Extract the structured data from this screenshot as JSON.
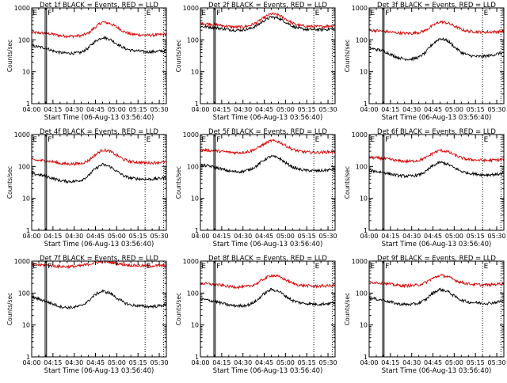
{
  "colors": {
    "events": "#000000",
    "lld": "#dd0000",
    "axis": "#000000",
    "background": "#ffffff"
  },
  "panel_common": {
    "ylabel": "Counts/sec",
    "xlabel": "Start Time (06-Aug-13 03:56:40)",
    "x_tick_labels": [
      "04:00",
      "04:15",
      "04:30",
      "04:45",
      "05:00",
      "05:15",
      "05:30"
    ],
    "y_tick_labels": [
      "1",
      "10",
      "100",
      "1000"
    ],
    "marker_labels": [
      "E",
      "F",
      "E"
    ]
  },
  "chart_data": [
    {
      "type": "line",
      "title": "Det 1f BLACK = Events, RED = LLD",
      "xlabel": "Start Time (06-Aug-13 03:56:40)",
      "ylabel": "Counts/sec",
      "x_unit": "minutes since 04:00",
      "xlim": [
        0,
        95
      ],
      "ylim": [
        1,
        1000
      ],
      "yscale": "log",
      "markers": {
        "solid": [
          9.5,
          10.5
        ],
        "dotted": [
          80,
          93
        ],
        "labels": [
          "E",
          "F",
          "E"
        ]
      },
      "series": [
        {
          "name": "LLD",
          "color": "red",
          "x": [
            0,
            5,
            10,
            15,
            20,
            25,
            30,
            35,
            40,
            45,
            50,
            55,
            60,
            65,
            70,
            75,
            80,
            85,
            90,
            95
          ],
          "values": [
            170,
            165,
            160,
            150,
            135,
            130,
            130,
            135,
            160,
            250,
            360,
            330,
            250,
            180,
            150,
            145,
            140,
            140,
            145,
            150
          ]
        },
        {
          "name": "Events",
          "color": "black",
          "x": [
            0,
            5,
            10,
            15,
            20,
            25,
            30,
            35,
            40,
            45,
            50,
            55,
            60,
            65,
            70,
            75,
            80,
            85,
            90,
            95
          ],
          "values": [
            65,
            60,
            55,
            45,
            40,
            38,
            38,
            40,
            55,
            90,
            120,
            105,
            75,
            55,
            47,
            45,
            42,
            42,
            44,
            46
          ]
        }
      ]
    },
    {
      "type": "line",
      "title": "Det 2f BLACK = Events, RED = LLD",
      "xlabel": "Start Time (06-Aug-13 03:56:40)",
      "ylabel": "Counts/sec",
      "x_unit": "minutes since 04:00",
      "xlim": [
        0,
        95
      ],
      "ylim": [
        1,
        1000
      ],
      "yscale": "log",
      "markers": {
        "solid": [
          9.5,
          10.5
        ],
        "dotted": [
          80,
          93
        ],
        "labels": [
          "E",
          "F",
          "E"
        ]
      },
      "series": [
        {
          "name": "LLD",
          "color": "red",
          "x": [
            0,
            5,
            10,
            15,
            20,
            25,
            30,
            35,
            40,
            45,
            50,
            55,
            60,
            65,
            70,
            75,
            80,
            85,
            90,
            95
          ],
          "values": [
            330,
            320,
            300,
            280,
            260,
            250,
            255,
            280,
            350,
            500,
            650,
            600,
            450,
            330,
            280,
            265,
            260,
            260,
            270,
            280
          ]
        },
        {
          "name": "Events",
          "color": "black",
          "x": [
            0,
            5,
            10,
            15,
            20,
            25,
            30,
            35,
            40,
            45,
            50,
            55,
            60,
            65,
            70,
            75,
            80,
            85,
            90,
            95
          ],
          "values": [
            260,
            255,
            240,
            225,
            210,
            200,
            205,
            225,
            280,
            400,
            520,
            480,
            360,
            265,
            225,
            212,
            210,
            210,
            215,
            225
          ]
        }
      ]
    },
    {
      "type": "line",
      "title": "Det 3f BLACK = Events, RED = LLD",
      "xlabel": "Start Time (06-Aug-13 03:56:40)",
      "ylabel": "Counts/sec",
      "x_unit": "minutes since 04:00",
      "xlim": [
        0,
        95
      ],
      "ylim": [
        1,
        1000
      ],
      "yscale": "log",
      "markers": {
        "solid": [
          9.5,
          10.5
        ],
        "dotted": [
          80,
          93
        ],
        "labels": [
          "E",
          "F",
          "E"
        ]
      },
      "series": [
        {
          "name": "LLD",
          "color": "red",
          "x": [
            0,
            5,
            10,
            15,
            20,
            25,
            30,
            35,
            40,
            45,
            50,
            55,
            60,
            65,
            70,
            75,
            80,
            85,
            90,
            95
          ],
          "values": [
            200,
            195,
            185,
            175,
            165,
            160,
            160,
            170,
            200,
            280,
            370,
            340,
            270,
            210,
            185,
            180,
            175,
            175,
            180,
            185
          ]
        },
        {
          "name": "Events",
          "color": "black",
          "x": [
            0,
            5,
            10,
            15,
            20,
            25,
            30,
            35,
            40,
            45,
            50,
            55,
            60,
            65,
            70,
            75,
            80,
            85,
            90,
            95
          ],
          "values": [
            55,
            50,
            45,
            35,
            28,
            25,
            25,
            28,
            40,
            75,
            110,
            95,
            60,
            40,
            33,
            30,
            30,
            32,
            36,
            40
          ]
        }
      ]
    },
    {
      "type": "line",
      "title": "Det 4f BLACK = Events, RED = LLD",
      "xlabel": "Start Time (06-Aug-13 03:56:40)",
      "ylabel": "Counts/sec",
      "x_unit": "minutes since 04:00",
      "xlim": [
        0,
        95
      ],
      "ylim": [
        1,
        1000
      ],
      "yscale": "log",
      "markers": {
        "solid": [
          9.5,
          10.5
        ],
        "dotted": [
          80,
          93
        ],
        "labels": [
          "E",
          "F",
          "E"
        ]
      },
      "series": [
        {
          "name": "LLD",
          "color": "red",
          "x": [
            0,
            5,
            10,
            15,
            20,
            25,
            30,
            35,
            40,
            45,
            50,
            55,
            60,
            65,
            70,
            75,
            80,
            85,
            90,
            95
          ],
          "values": [
            160,
            155,
            150,
            140,
            125,
            120,
            120,
            125,
            150,
            230,
            330,
            300,
            220,
            165,
            140,
            135,
            130,
            130,
            135,
            140
          ]
        },
        {
          "name": "Events",
          "color": "black",
          "x": [
            0,
            5,
            10,
            15,
            20,
            25,
            30,
            35,
            40,
            45,
            50,
            55,
            60,
            65,
            70,
            75,
            80,
            85,
            90,
            95
          ],
          "values": [
            60,
            55,
            50,
            42,
            36,
            34,
            34,
            37,
            50,
            85,
            115,
            100,
            70,
            50,
            43,
            41,
            40,
            40,
            42,
            45
          ]
        }
      ]
    },
    {
      "type": "line",
      "title": "Det 5f BLACK = Events, RED = LLD",
      "xlabel": "Start Time (06-Aug-13 03:56:40)",
      "ylabel": "Counts/sec",
      "x_unit": "minutes since 04:00",
      "xlim": [
        0,
        95
      ],
      "ylim": [
        1,
        1000
      ],
      "yscale": "log",
      "markers": {
        "solid": [
          9.5,
          10.5
        ],
        "dotted": [
          80,
          93
        ],
        "labels": [
          "E",
          "F",
          "E"
        ]
      },
      "series": [
        {
          "name": "LLD",
          "color": "red",
          "x": [
            0,
            5,
            10,
            15,
            20,
            25,
            30,
            35,
            40,
            45,
            50,
            55,
            60,
            65,
            70,
            75,
            80,
            85,
            90,
            95
          ],
          "values": [
            330,
            320,
            310,
            295,
            280,
            270,
            275,
            300,
            370,
            500,
            640,
            600,
            450,
            340,
            295,
            280,
            275,
            275,
            285,
            295
          ]
        },
        {
          "name": "Events",
          "color": "black",
          "x": [
            0,
            5,
            10,
            15,
            20,
            25,
            30,
            35,
            40,
            45,
            50,
            55,
            60,
            65,
            70,
            75,
            80,
            85,
            90,
            95
          ],
          "values": [
            110,
            105,
            95,
            82,
            72,
            68,
            70,
            80,
            105,
            160,
            210,
            185,
            130,
            95,
            80,
            75,
            73,
            73,
            77,
            82
          ]
        }
      ]
    },
    {
      "type": "line",
      "title": "Det 6f BLACK = Events, RED = LLD",
      "xlabel": "Start Time (06-Aug-13 03:56:40)",
      "ylabel": "Counts/sec",
      "x_unit": "minutes since 04:00",
      "xlim": [
        0,
        95
      ],
      "ylim": [
        1,
        1000
      ],
      "yscale": "log",
      "markers": {
        "solid": [
          9.5,
          10.5
        ],
        "dotted": [
          80,
          93
        ],
        "labels": [
          "E",
          "F",
          "E"
        ]
      },
      "series": [
        {
          "name": "LLD",
          "color": "red",
          "x": [
            0,
            5,
            10,
            15,
            20,
            25,
            30,
            35,
            40,
            45,
            50,
            55,
            60,
            65,
            70,
            75,
            80,
            85,
            90,
            95
          ],
          "values": [
            190,
            185,
            175,
            165,
            150,
            145,
            145,
            155,
            185,
            260,
            320,
            295,
            230,
            185,
            165,
            160,
            155,
            155,
            160,
            165
          ]
        },
        {
          "name": "Events",
          "color": "black",
          "x": [
            0,
            5,
            10,
            15,
            20,
            25,
            30,
            35,
            40,
            45,
            50,
            55,
            60,
            65,
            70,
            75,
            80,
            85,
            90,
            95
          ],
          "values": [
            75,
            70,
            65,
            58,
            52,
            50,
            50,
            54,
            68,
            105,
            135,
            120,
            90,
            70,
            62,
            58,
            55,
            55,
            57,
            60
          ]
        }
      ]
    },
    {
      "type": "line",
      "title": "Det 7f BLACK = Events, RED = LLD",
      "xlabel": "Start Time (06-Aug-13 03:56:40)",
      "ylabel": "Counts/sec",
      "x_unit": "minutes since 04:00",
      "xlim": [
        0,
        95
      ],
      "ylim": [
        1,
        1000
      ],
      "yscale": "log",
      "markers": {
        "solid": [
          9.5,
          10.5
        ],
        "dotted": [
          80,
          93
        ],
        "labels": [
          "E",
          "F",
          "E"
        ]
      },
      "series": [
        {
          "name": "LLD",
          "color": "red",
          "x": [
            0,
            5,
            10,
            15,
            20,
            25,
            30,
            35,
            40,
            45,
            50,
            55,
            60,
            65,
            70,
            75,
            80,
            85,
            90,
            95
          ],
          "values": [
            780,
            760,
            740,
            710,
            680,
            670,
            680,
            720,
            800,
            900,
            950,
            920,
            850,
            780,
            740,
            720,
            710,
            710,
            720,
            730
          ]
        },
        {
          "name": "Events",
          "color": "black",
          "x": [
            0,
            5,
            10,
            15,
            20,
            25,
            30,
            35,
            40,
            45,
            50,
            55,
            60,
            65,
            70,
            75,
            80,
            85,
            90,
            95
          ],
          "values": [
            75,
            65,
            55,
            45,
            38,
            35,
            36,
            40,
            55,
            90,
            115,
            100,
            70,
            50,
            42,
            40,
            38,
            38,
            40,
            43
          ]
        }
      ]
    },
    {
      "type": "line",
      "title": "Det 8f BLACK = Events, RED = LLD",
      "xlabel": "Start Time (06-Aug-13 03:56:40)",
      "ylabel": "Counts/sec",
      "x_unit": "minutes since 04:00",
      "xlim": [
        0,
        95
      ],
      "ylim": [
        1,
        1000
      ],
      "yscale": "log",
      "markers": {
        "solid": [
          9.5,
          10.5
        ],
        "dotted": [
          80,
          93
        ],
        "labels": [
          "E",
          "F",
          "E"
        ]
      },
      "series": [
        {
          "name": "LLD",
          "color": "red",
          "x": [
            0,
            5,
            10,
            15,
            20,
            25,
            30,
            35,
            40,
            45,
            50,
            55,
            60,
            65,
            70,
            75,
            80,
            85,
            90,
            95
          ],
          "values": [
            200,
            195,
            185,
            175,
            160,
            155,
            155,
            165,
            200,
            280,
            360,
            330,
            260,
            200,
            175,
            170,
            165,
            165,
            170,
            175
          ]
        },
        {
          "name": "Events",
          "color": "black",
          "x": [
            0,
            5,
            10,
            15,
            20,
            25,
            30,
            35,
            40,
            45,
            50,
            55,
            60,
            65,
            70,
            75,
            80,
            85,
            90,
            95
          ],
          "values": [
            65,
            60,
            55,
            48,
            42,
            40,
            40,
            44,
            58,
            95,
            130,
            115,
            80,
            58,
            50,
            47,
            45,
            45,
            47,
            50
          ]
        }
      ]
    },
    {
      "type": "line",
      "title": "Det 9f BLACK = Events, RED = LLD",
      "xlabel": "Start Time (06-Aug-13 03:56:40)",
      "ylabel": "Counts/sec",
      "x_unit": "minutes since 04:00",
      "xlim": [
        0,
        95
      ],
      "ylim": [
        1,
        1000
      ],
      "yscale": "log",
      "markers": {
        "solid": [
          9.5,
          10.5
        ],
        "dotted": [
          80,
          93
        ],
        "labels": [
          "E",
          "F",
          "E"
        ]
      },
      "series": [
        {
          "name": "LLD",
          "color": "red",
          "x": [
            0,
            5,
            10,
            15,
            20,
            25,
            30,
            35,
            40,
            45,
            50,
            55,
            60,
            65,
            70,
            75,
            80,
            85,
            90,
            95
          ],
          "values": [
            220,
            215,
            205,
            190,
            175,
            170,
            170,
            180,
            215,
            290,
            360,
            330,
            260,
            215,
            195,
            185,
            180,
            180,
            190,
            200
          ]
        },
        {
          "name": "Events",
          "color": "black",
          "x": [
            0,
            5,
            10,
            15,
            20,
            25,
            30,
            35,
            40,
            45,
            50,
            55,
            60,
            65,
            70,
            75,
            80,
            85,
            90,
            95
          ],
          "values": [
            70,
            65,
            60,
            52,
            46,
            44,
            44,
            48,
            62,
            100,
            130,
            115,
            80,
            60,
            52,
            50,
            48,
            48,
            52,
            58
          ]
        }
      ]
    }
  ]
}
